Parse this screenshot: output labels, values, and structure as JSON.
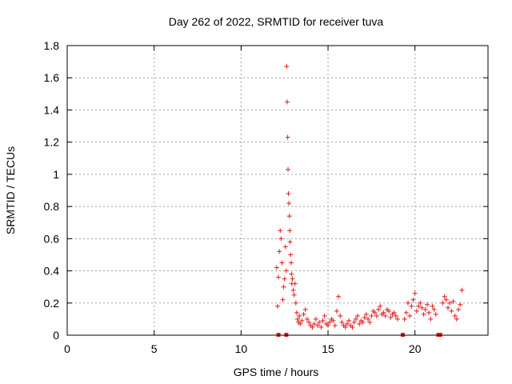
{
  "chart_data": {
    "type": "scatter",
    "title": "Day 262 of 2022, SRMTID for receiver tuva",
    "xlabel": "GPS time / hours",
    "ylabel": "SRMTID / TECUs",
    "xlim": [
      0,
      24.2
    ],
    "ylim": [
      0,
      1.8
    ],
    "x_ticks": [
      0,
      5,
      10,
      15,
      20
    ],
    "x_tick_labels": [
      "0",
      "5",
      "10",
      "15",
      "20"
    ],
    "y_ticks": [
      0,
      0.2,
      0.4,
      0.6,
      0.8,
      1.0,
      1.2,
      1.4,
      1.6,
      1.8
    ],
    "y_tick_labels": [
      "0",
      "0.2",
      "0.4",
      "0.6",
      "0.8",
      "1",
      "1.2",
      "1.4",
      "1.6",
      "1.8"
    ],
    "grid": true,
    "marker": "plus",
    "series_color": "#e41a1c",
    "series": [
      {
        "name": "SRMTID",
        "x": [
          12.05,
          12.1,
          12.15,
          12.2,
          12.25,
          12.3,
          12.35,
          12.4,
          12.45,
          12.5,
          12.55,
          12.6,
          12.62,
          12.65,
          12.68,
          12.7,
          12.72,
          12.75,
          12.78,
          12.8,
          12.82,
          12.85,
          12.88,
          12.9,
          12.92,
          12.95,
          13.0,
          13.05,
          13.1,
          13.15,
          13.2,
          13.25,
          13.3,
          13.35,
          13.4,
          13.5,
          13.6,
          13.7,
          13.8,
          13.9,
          14.0,
          14.1,
          14.2,
          14.3,
          14.4,
          14.5,
          14.6,
          14.7,
          14.8,
          14.9,
          15.0,
          15.1,
          15.2,
          15.3,
          15.4,
          15.5,
          15.6,
          15.7,
          15.8,
          15.9,
          16.0,
          16.1,
          16.2,
          16.3,
          16.4,
          16.5,
          16.6,
          16.7,
          16.8,
          16.9,
          17.0,
          17.1,
          17.2,
          17.3,
          17.4,
          17.5,
          17.6,
          17.7,
          17.8,
          17.9,
          18.0,
          18.1,
          18.2,
          18.3,
          18.4,
          18.5,
          18.6,
          18.7,
          18.8,
          18.9,
          19.0,
          19.4,
          19.5,
          19.6,
          19.7,
          19.8,
          19.9,
          20.0,
          20.1,
          20.2,
          20.3,
          20.4,
          20.5,
          20.6,
          20.7,
          20.8,
          20.9,
          21.0,
          21.1,
          21.2,
          21.6,
          21.7,
          21.8,
          21.9,
          22.0,
          22.1,
          22.2,
          22.3,
          22.4,
          22.5,
          22.6,
          22.7
        ],
        "values": [
          0.42,
          0.18,
          0.36,
          0.52,
          0.65,
          0.6,
          0.45,
          0.22,
          0.3,
          0.35,
          0.55,
          0.4,
          1.67,
          1.45,
          1.23,
          1.03,
          0.88,
          0.82,
          0.74,
          0.65,
          0.58,
          0.5,
          0.45,
          0.38,
          0.32,
          0.35,
          0.28,
          0.25,
          0.32,
          0.2,
          0.14,
          0.1,
          0.08,
          0.12,
          0.07,
          0.09,
          0.13,
          0.16,
          0.1,
          0.08,
          0.06,
          0.05,
          0.07,
          0.1,
          0.06,
          0.08,
          0.05,
          0.09,
          0.12,
          0.07,
          0.06,
          0.08,
          0.1,
          0.09,
          0.06,
          0.15,
          0.24,
          0.12,
          0.08,
          0.06,
          0.05,
          0.07,
          0.09,
          0.06,
          0.05,
          0.08,
          0.1,
          0.12,
          0.07,
          0.09,
          0.08,
          0.11,
          0.13,
          0.1,
          0.08,
          0.12,
          0.15,
          0.14,
          0.12,
          0.16,
          0.18,
          0.13,
          0.14,
          0.12,
          0.16,
          0.15,
          0.11,
          0.13,
          0.14,
          0.12,
          0.1,
          0.1,
          0.14,
          0.2,
          0.12,
          0.18,
          0.22,
          0.26,
          0.15,
          0.18,
          0.2,
          0.17,
          0.13,
          0.16,
          0.19,
          0.14,
          0.1,
          0.18,
          0.16,
          0.13,
          0.2,
          0.24,
          0.22,
          0.17,
          0.2,
          0.15,
          0.21,
          0.12,
          0.1,
          0.16,
          0.19,
          0.28
        ]
      }
    ],
    "zero_markers_x": [
      12.15,
      12.6,
      19.3,
      21.35,
      21.45
    ]
  }
}
